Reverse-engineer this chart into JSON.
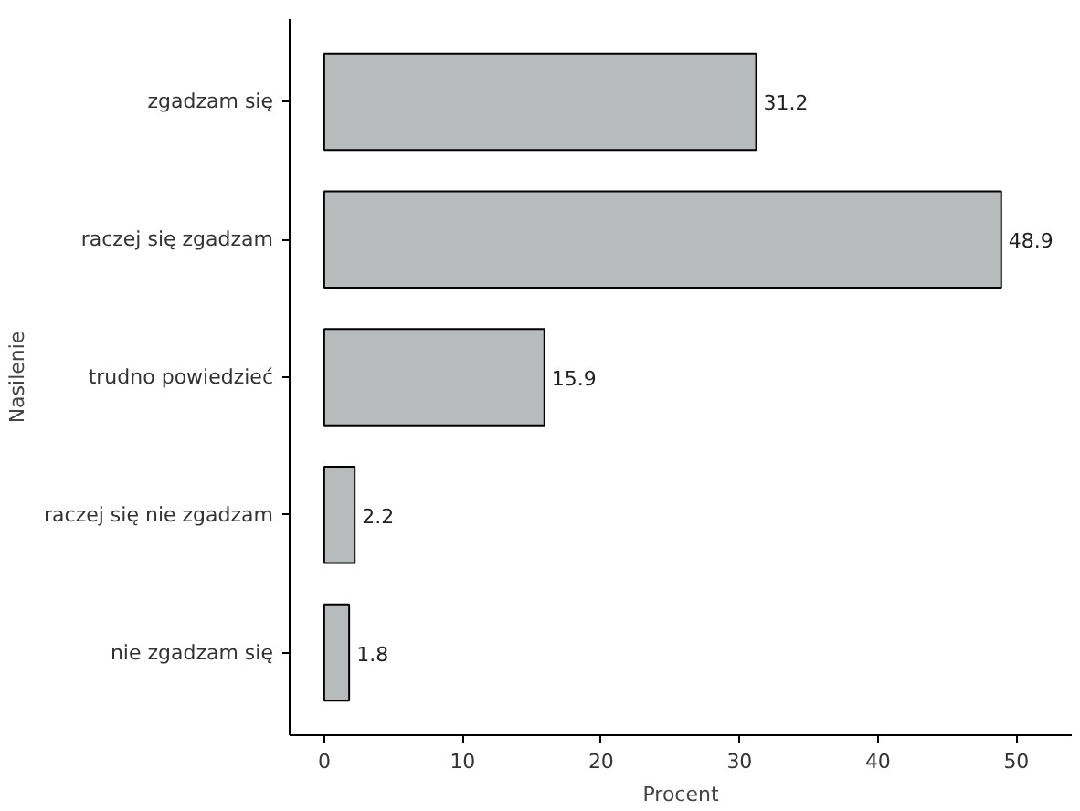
{
  "chart_data": {
    "type": "bar",
    "orientation": "horizontal",
    "xlabel": "Procent",
    "ylabel": "Nasilenie",
    "categories": [
      "zgadzam się",
      "raczej się zgadzam",
      "trudno powiedzieć",
      "raczej się nie zgadzam",
      "nie zgadzam się"
    ],
    "values": [
      31.2,
      48.9,
      15.9,
      2.2,
      1.8
    ],
    "color": "#b8bbbb",
    "data_labels": true,
    "grid": false,
    "xlim": [
      -2.5,
      54
    ],
    "xticks": [
      0,
      10,
      20,
      30,
      40,
      50
    ]
  }
}
